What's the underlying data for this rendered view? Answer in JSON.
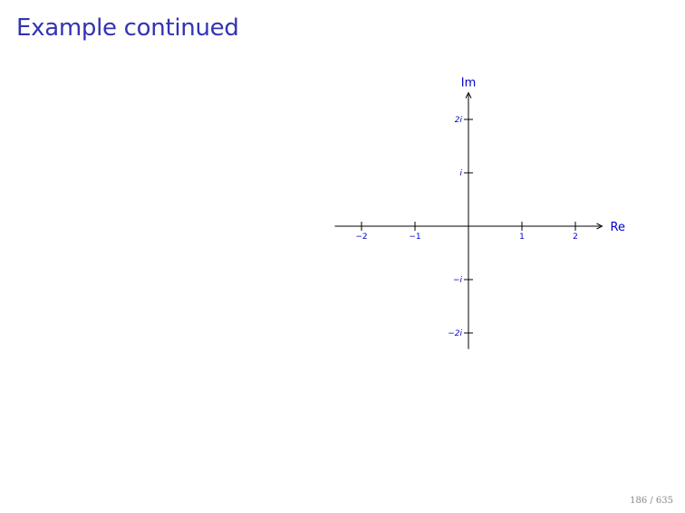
{
  "slide": {
    "title": "Example continued",
    "page_number": "186 / 635"
  },
  "colors": {
    "title": "#3333b3",
    "axis": "#000000",
    "labels": "#0000cc",
    "page_number": "#888888"
  },
  "complex_plane": {
    "real_axis_label": "Re",
    "imag_axis_label": "Im",
    "real_ticks": [
      {
        "value": -2,
        "label": "−2"
      },
      {
        "value": -1,
        "label": "−1"
      },
      {
        "value": 1,
        "label": "1"
      },
      {
        "value": 2,
        "label": "2"
      }
    ],
    "imag_ticks": [
      {
        "value": 2,
        "label": "2i"
      },
      {
        "value": 1,
        "label": "i"
      },
      {
        "value": -1,
        "label": "−i"
      },
      {
        "value": -2,
        "label": "−2i"
      }
    ],
    "real_range": [
      -2.5,
      2.5
    ],
    "imag_range": [
      -2.3,
      2.5
    ]
  }
}
